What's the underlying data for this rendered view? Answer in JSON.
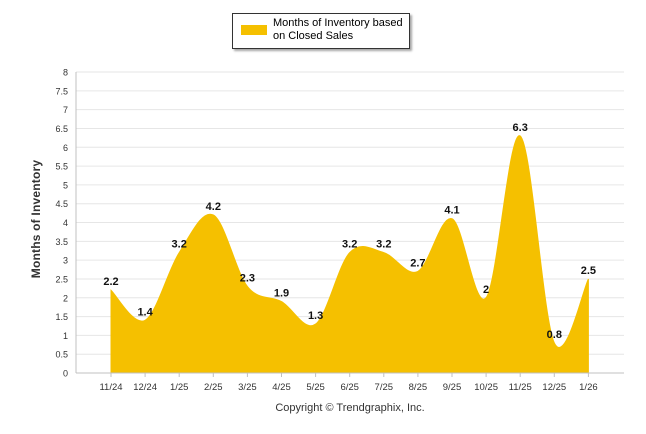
{
  "chart_data": {
    "type": "area",
    "title": "",
    "categories": [
      "11/24",
      "12/24",
      "1/25",
      "2/25",
      "3/25",
      "4/25",
      "5/25",
      "6/25",
      "7/25",
      "8/25",
      "9/25",
      "10/25",
      "11/25",
      "12/25",
      "1/26"
    ],
    "series": [
      {
        "name": "Months of Inventory based on Closed Sales",
        "values": [
          2.2,
          1.4,
          3.2,
          4.2,
          2.3,
          1.9,
          1.3,
          3.2,
          3.2,
          2.7,
          4.1,
          2,
          6.3,
          0.8,
          2.5
        ]
      }
    ],
    "data_labels": [
      "2.2",
      "1.4",
      "3.2",
      "4.2",
      "2.3",
      "1.9",
      "1.3",
      "3.2",
      "3.2",
      "2.7",
      "4.1",
      "2",
      "6.3",
      "0.8",
      "2.5"
    ],
    "ylabel": "Months of Inventory",
    "xlabel": "",
    "ylim": [
      0,
      8
    ],
    "yticks": [
      "0",
      "0.5",
      "1",
      "1.5",
      "2",
      "2.5",
      "3",
      "3.5",
      "4",
      "4.5",
      "5",
      "5.5",
      "6",
      "6.5",
      "7",
      "7.5",
      "8"
    ],
    "legend_position": "top-center",
    "grid": true,
    "color": "#F5C000"
  },
  "legend": {
    "label": "Months of Inventory based on Closed Sales"
  },
  "footer": {
    "copyright": "Copyright © Trendgraphix, Inc."
  }
}
